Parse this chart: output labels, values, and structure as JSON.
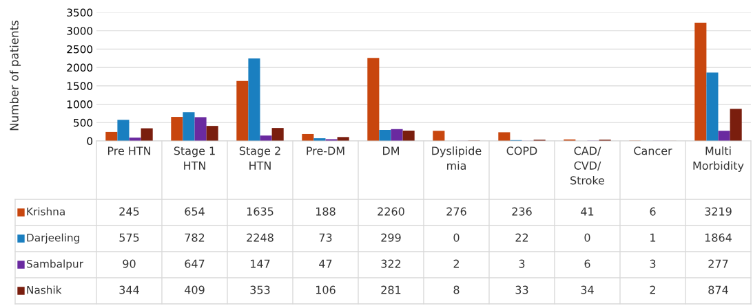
{
  "chart_data": {
    "type": "bar",
    "ylabel": "Number of patients",
    "categories": [
      "Pre HTN",
      "Stage 1\nHTN",
      "Stage 2\nHTN",
      "Pre-DM",
      "DM",
      "Dyslipide\nmia",
      "COPD",
      "CAD/\nCVD/\nStroke",
      "Cancer",
      "Multi\nMorbidity"
    ],
    "series": [
      {
        "name": "Krishna",
        "color": "#c8460e",
        "values": [
          245,
          654,
          1635,
          188,
          2260,
          276,
          236,
          41,
          6,
          3219
        ]
      },
      {
        "name": "Darjeeling",
        "color": "#1a7fc0",
        "values": [
          575,
          782,
          2248,
          73,
          299,
          0,
          22,
          0,
          1,
          1864
        ]
      },
      {
        "name": "Sambalpur",
        "color": "#6a2aa0",
        "values": [
          90,
          647,
          147,
          47,
          322,
          2,
          3,
          6,
          3,
          277
        ]
      },
      {
        "name": "Nashik",
        "color": "#7a1e0e",
        "values": [
          344,
          409,
          353,
          106,
          281,
          8,
          33,
          34,
          2,
          874
        ]
      }
    ],
    "ylim": [
      0,
      3500
    ],
    "yticks": [
      0,
      500,
      1000,
      1500,
      2000,
      2500,
      3000,
      3500
    ],
    "grid": "y",
    "data_labels": true,
    "legend": "bottom"
  }
}
